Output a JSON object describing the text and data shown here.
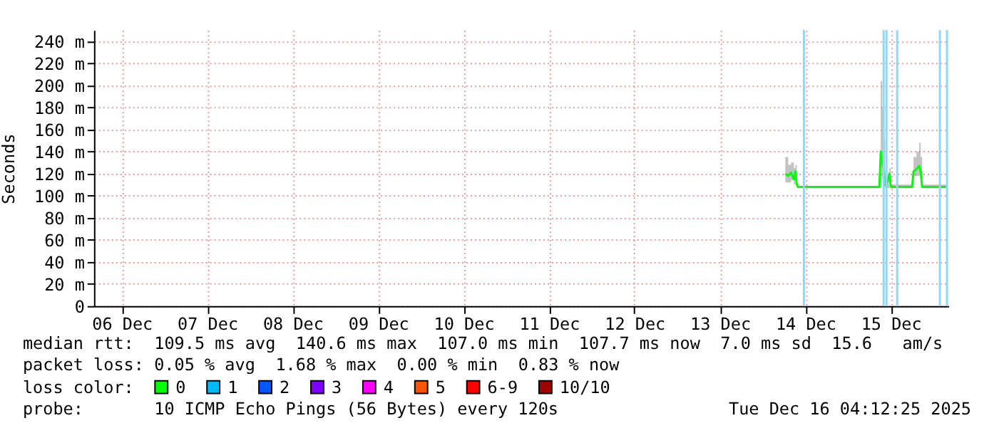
{
  "chart_data": {
    "type": "line",
    "ylabel": "Seconds",
    "xlim": [
      "2025-12-06T04:12",
      "2025-12-16T04:12"
    ],
    "xticks": [
      {
        "value": "2025-12-06T12:00",
        "label": "06 Dec"
      },
      {
        "value": "2025-12-07T12:00",
        "label": "07 Dec"
      },
      {
        "value": "2025-12-08T12:00",
        "label": "08 Dec"
      },
      {
        "value": "2025-12-09T12:00",
        "label": "09 Dec"
      },
      {
        "value": "2025-12-10T12:00",
        "label": "10 Dec"
      },
      {
        "value": "2025-12-11T12:00",
        "label": "11 Dec"
      },
      {
        "value": "2025-12-12T12:00",
        "label": "12 Dec"
      },
      {
        "value": "2025-12-13T12:00",
        "label": "13 Dec"
      },
      {
        "value": "2025-12-14T12:00",
        "label": "14 Dec"
      },
      {
        "value": "2025-12-15T12:00",
        "label": "15 Dec"
      }
    ],
    "ylim": [
      0,
      250
    ],
    "yticks": [
      0,
      {
        "value": 20,
        "label": "20 m"
      },
      {
        "value": 40,
        "label": "40 m"
      },
      {
        "value": 60,
        "label": "60 m"
      },
      {
        "value": 80,
        "label": "80 m"
      },
      {
        "value": 100,
        "label": "100 m"
      },
      {
        "value": 120,
        "label": "120 m"
      },
      {
        "value": 140,
        "label": "140 m"
      },
      {
        "value": 160,
        "label": "160 m"
      },
      {
        "value": 180,
        "label": "180 m"
      },
      {
        "value": 200,
        "label": "200 m"
      },
      {
        "value": 220,
        "label": "220 m"
      },
      {
        "value": 240,
        "label": "240 m"
      }
    ],
    "grid": true,
    "legend": "bottom",
    "legend_title": "loss color:",
    "series": [
      {
        "name": "0",
        "color": "#00ff00",
        "x": [
          "2025-12-14T06:24",
          "2025-12-14T07:12",
          "2025-12-14T08:00",
          "2025-12-14T08:48",
          "2025-12-14T09:12",
          "2025-12-14T09:36",
          "2025-12-14T10:00",
          "2025-12-14T22:00",
          "2025-12-15T08:48",
          "2025-12-15T09:12",
          "2025-12-15T09:36",
          "2025-12-15T10:00",
          "2025-12-15T10:24",
          "2025-12-15T10:48",
          "2025-12-15T11:36",
          "2025-12-15T12:00",
          "2025-12-15T18:00",
          "2025-12-15T18:24",
          "2025-12-15T19:12",
          "2025-12-15T20:00",
          "2025-12-15T20:24",
          "2025-12-15T20:48",
          "2025-12-16T03:36"
        ],
        "values": [
          120,
          118,
          121,
          115,
          122,
          110,
          108,
          108,
          108,
          140,
          130,
          125,
          110,
          108,
          120,
          108,
          108,
          122,
          124,
          127,
          122,
          108,
          108
        ],
        "lower": [
          112,
          112,
          114,
          110,
          115,
          107,
          107,
          107,
          107,
          118,
          115,
          112,
          107,
          107,
          110,
          107,
          107,
          118,
          118,
          120,
          118,
          107,
          107
        ],
        "upper": [
          135,
          128,
          130,
          125,
          128,
          112,
          109,
          109,
          110,
          204,
          180,
          150,
          115,
          110,
          125,
          110,
          110,
          135,
          140,
          148,
          135,
          110,
          110
        ]
      },
      {
        "name": "1",
        "color": "#00b8ff"
      },
      {
        "name": "2",
        "color": "#0059ff"
      },
      {
        "name": "3",
        "color": "#7e00ff"
      },
      {
        "name": "4",
        "color": "#ff00ff"
      },
      {
        "name": "5",
        "color": "#ff5500"
      },
      {
        "name": "6-9",
        "color": "#ff0000"
      },
      {
        "name": "10/10",
        "color": "#a10000"
      }
    ],
    "ref_lines": [
      {
        "axis": "x",
        "value": "2025-12-14T11:36",
        "color": "#8fd8f8"
      },
      {
        "axis": "x",
        "value": "2025-12-15T10:00",
        "color": "#8fd8f8"
      },
      {
        "axis": "x",
        "value": "2025-12-15T10:48",
        "color": "#8fd8f8"
      },
      {
        "axis": "x",
        "value": "2025-12-15T13:48",
        "color": "#8fd8f8"
      },
      {
        "axis": "x",
        "value": "2025-12-16T01:48",
        "color": "#8fd8f8"
      },
      {
        "axis": "x",
        "value": "2025-12-16T03:48",
        "color": "#8fd8f8"
      }
    ],
    "annotations": [
      "median rtt:  109.5 ms avg  140.6 ms max  107.0 ms min  107.7 ms now  7.0 ms sd  15.6   am/s",
      "packet loss: 0.05 % avg  1.68 % max  0.00 % min  0.83 % now",
      "probe:       10 ICMP Echo Pings (56 Bytes) every 120s",
      "Tue Dec 16 04:12:25 2025"
    ]
  }
}
